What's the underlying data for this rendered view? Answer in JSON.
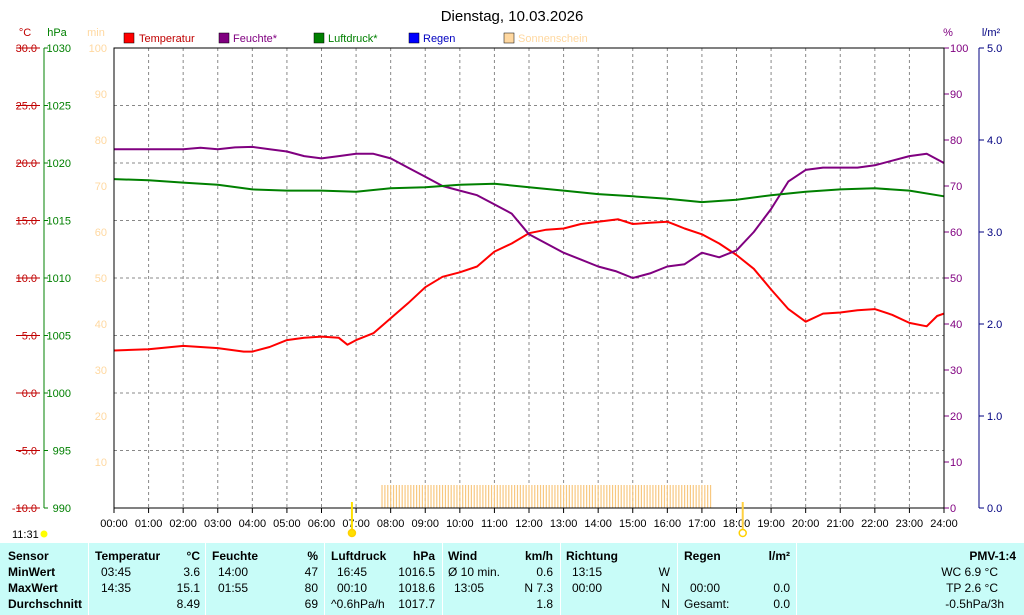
{
  "chart_data": {
    "type": "line",
    "title": "Dienstag, 10.03.2026",
    "x_ticks": [
      "00:00",
      "01:00",
      "02:00",
      "03:00",
      "04:00",
      "05:00",
      "06:00",
      "07:00",
      "08:00",
      "09:00",
      "10:00",
      "11:00",
      "12:00",
      "13:00",
      "14:00",
      "15:00",
      "16:00",
      "17:00",
      "18:00",
      "19:00",
      "20:00",
      "21:00",
      "22:00",
      "23:00",
      "24:00"
    ],
    "xlim": [
      0,
      24
    ],
    "grid": true,
    "legend_position": "top",
    "legend": [
      {
        "label": "Temperatur",
        "color": "#ff0000"
      },
      {
        "label": "Feuchte*",
        "color": "#800080"
      },
      {
        "label": "Luftdruck*",
        "color": "#008000"
      },
      {
        "label": "Regen",
        "color": "#0000ff"
      },
      {
        "label": "Sonnenschein",
        "color": "#ffd8a0"
      }
    ],
    "axes": {
      "temperature": {
        "unit": "°C",
        "ticks": [
          "30.0",
          "25.0",
          "20.0",
          "15.0",
          "10.0",
          "5.0",
          "0.0",
          "-5.0",
          "-10.0"
        ],
        "ylim": [
          -10,
          30
        ],
        "color": "#c00000"
      },
      "pressure": {
        "unit": "hPa",
        "ticks": [
          "1030",
          "1025",
          "1020",
          "1015",
          "1010",
          "1005",
          "1000",
          "995",
          "990"
        ],
        "ylim": [
          990,
          1030
        ],
        "color": "#008000"
      },
      "sunshine": {
        "unit": "min",
        "ticks": [
          "100",
          "90",
          "80",
          "70",
          "60",
          "50",
          "40",
          "30",
          "20",
          "10"
        ],
        "ylim": [
          0,
          100
        ],
        "color": "#ffd8a0"
      },
      "humidity": {
        "unit": "%",
        "ticks": [
          "100",
          "90",
          "80",
          "70",
          "60",
          "50",
          "40",
          "30",
          "20",
          "10",
          "0"
        ],
        "ylim": [
          0,
          100
        ],
        "color": "#800080"
      },
      "rain": {
        "unit": "l/m²",
        "ticks": [
          "5.0",
          "4.0",
          "3.0",
          "2.0",
          "1.0",
          "0.0"
        ],
        "ylim": [
          0,
          5
        ],
        "color": "#000080"
      }
    },
    "series": [
      {
        "name": "Temperatur",
        "color": "#ff0000",
        "axis": "temperature",
        "x": [
          0,
          1,
          2,
          2.5,
          3,
          3.75,
          4,
          4.5,
          5,
          5.5,
          6,
          6.5,
          6.75,
          7,
          7.5,
          8,
          8.5,
          9,
          9.5,
          10,
          10.5,
          11,
          11.5,
          12,
          12.5,
          13,
          13.5,
          14,
          14.58,
          15,
          15.5,
          16,
          16.25,
          16.5,
          17,
          17.5,
          18,
          18.5,
          19,
          19.5,
          20,
          20.5,
          21,
          21.5,
          22,
          22.5,
          23,
          23.5,
          23.8,
          24
        ],
        "y": [
          3.7,
          3.8,
          4.1,
          4.0,
          3.9,
          3.6,
          3.6,
          4.0,
          4.6,
          4.8,
          4.9,
          4.8,
          4.2,
          4.6,
          5.2,
          6.5,
          7.8,
          9.2,
          10.1,
          10.5,
          11.0,
          12.3,
          13.0,
          13.9,
          14.2,
          14.3,
          14.7,
          14.9,
          15.1,
          14.7,
          14.8,
          14.9,
          14.6,
          14.3,
          13.8,
          13.0,
          12.0,
          10.8,
          9.0,
          7.3,
          6.2,
          6.9,
          7.0,
          7.2,
          7.3,
          6.8,
          6.1,
          5.8,
          6.7,
          6.9
        ]
      },
      {
        "name": "Feuchte*",
        "color": "#800080",
        "axis": "humidity",
        "x": [
          0,
          1,
          2,
          2.5,
          3,
          3.5,
          4,
          4.5,
          5,
          5.5,
          6,
          6.5,
          7,
          7.5,
          8,
          8.5,
          9,
          9.5,
          10,
          10.5,
          11,
          11.5,
          12,
          12.5,
          13,
          13.5,
          14,
          14.5,
          15,
          15.5,
          16,
          16.5,
          17,
          17.5,
          18,
          18.5,
          19,
          19.5,
          20,
          20.5,
          21,
          21.5,
          22,
          22.5,
          23,
          23.5,
          24
        ],
        "y": [
          78,
          78,
          78,
          78.3,
          78,
          78.4,
          78.5,
          78,
          77.5,
          76.5,
          76,
          76.5,
          77,
          77,
          76,
          74,
          72,
          70,
          69,
          68,
          66,
          64,
          59.5,
          57.5,
          55.5,
          54,
          52.5,
          51.5,
          50,
          51,
          52.5,
          53,
          55.5,
          54.5,
          56,
          60,
          65,
          71,
          73.5,
          74,
          74,
          74,
          74.5,
          75.5,
          76.5,
          77,
          75
        ]
      },
      {
        "name": "Luftdruck*",
        "color": "#008000",
        "axis": "pressure",
        "x": [
          0,
          1,
          2,
          3,
          4,
          5,
          6,
          7,
          8,
          9,
          10,
          11,
          12,
          13,
          14,
          15,
          16,
          17,
          18,
          19,
          20,
          21,
          22,
          23,
          24
        ],
        "y": [
          1018.6,
          1018.5,
          1018.3,
          1018.1,
          1017.7,
          1017.6,
          1017.6,
          1017.5,
          1017.8,
          1017.9,
          1018.1,
          1018.2,
          1017.9,
          1017.6,
          1017.3,
          1017.1,
          1016.9,
          1016.6,
          1016.8,
          1017.2,
          1017.5,
          1017.7,
          1017.8,
          1017.6,
          1017.1
        ]
      }
    ],
    "sunshine_bars": {
      "start": 7.75,
      "end": 17.25,
      "value_min": 5
    },
    "markers": {
      "sunrise_time": 6.88,
      "sunset_time": 18.18,
      "time_label": "11:31"
    }
  },
  "stats": {
    "headers": {
      "sensor": "Sensor",
      "temp": "Temperatur",
      "temp_unit": "°C",
      "hum": "Feuchte",
      "hum_unit": "%",
      "press": "Luftdruck",
      "press_unit": "hPa",
      "wind": "Wind",
      "wind_unit": "km/h",
      "dir": "Richtung",
      "rain": "Regen",
      "rain_unit": "l/m²",
      "pmv": "PMV-1:4"
    },
    "rows": [
      {
        "label": "MinWert",
        "temp_time": "03:45",
        "temp": "3.6",
        "hum_time": "14:00",
        "hum": "47",
        "press_time": "16:45",
        "press": "1016.5",
        "wind_time": "Ø 10 min.",
        "wind": "0.6",
        "dir_time": "13:15",
        "dir": "W",
        "rain_time": "",
        "rain": "",
        "pmv": "WC 6.9 °C"
      },
      {
        "label": "MaxWert",
        "temp_time": "14:35",
        "temp": "15.1",
        "hum_time": "01:55",
        "hum": "80",
        "press_time": "00:10",
        "press": "1018.6",
        "wind_time": "13:05",
        "wind": "N 7.3",
        "dir_time": "00:00",
        "dir": "N",
        "rain_time": "00:00",
        "rain": "0.0",
        "pmv": "TP 2.6 °C"
      },
      {
        "label": "Durchschnitt",
        "temp_time": "",
        "temp": "8.49",
        "hum_time": "",
        "hum": "69",
        "press_time": "^0.6hPa/h",
        "press": "1017.7",
        "wind_time": "",
        "wind": "1.8",
        "dir_time": "",
        "dir": "N",
        "rain_time": "Gesamt:",
        "rain": "0.0",
        "pmv": "-0.5hPa/3h"
      }
    ]
  }
}
